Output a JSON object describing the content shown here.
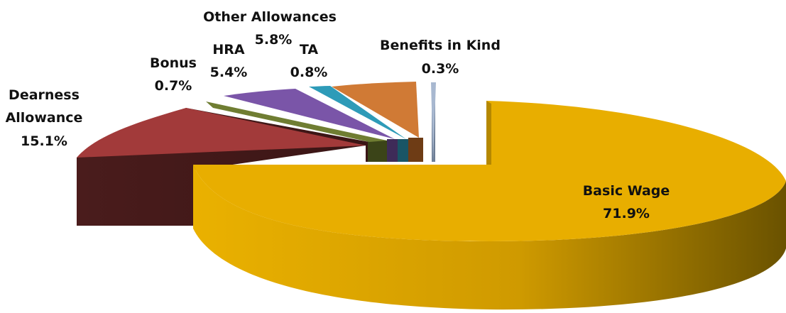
{
  "chart_data": {
    "type": "pie",
    "variant": "3d-exploded",
    "title": "",
    "slices": [
      {
        "name": "Basic Wage",
        "value": 71.9,
        "label": "71.9%",
        "color": "#E8AE00"
      },
      {
        "name": "Benefits in Kind",
        "value": 0.3,
        "label": "0.3%",
        "color": "#A8B8D0"
      },
      {
        "name": "Other Allowances",
        "value": 5.8,
        "label": "5.8%",
        "color": "#D07A35"
      },
      {
        "name": "TA",
        "value": 0.8,
        "label": "0.8%",
        "color": "#2E9BB8"
      },
      {
        "name": "HRA",
        "value": 5.4,
        "label": "5.4%",
        "color": "#7A55A8"
      },
      {
        "name": "Bonus",
        "value": 0.7,
        "label": "0.7%",
        "color": "#6F7D32"
      },
      {
        "name": "Dearness Allowance",
        "value": 15.1,
        "label": "15.1%",
        "color": "#A23A3A"
      }
    ]
  }
}
